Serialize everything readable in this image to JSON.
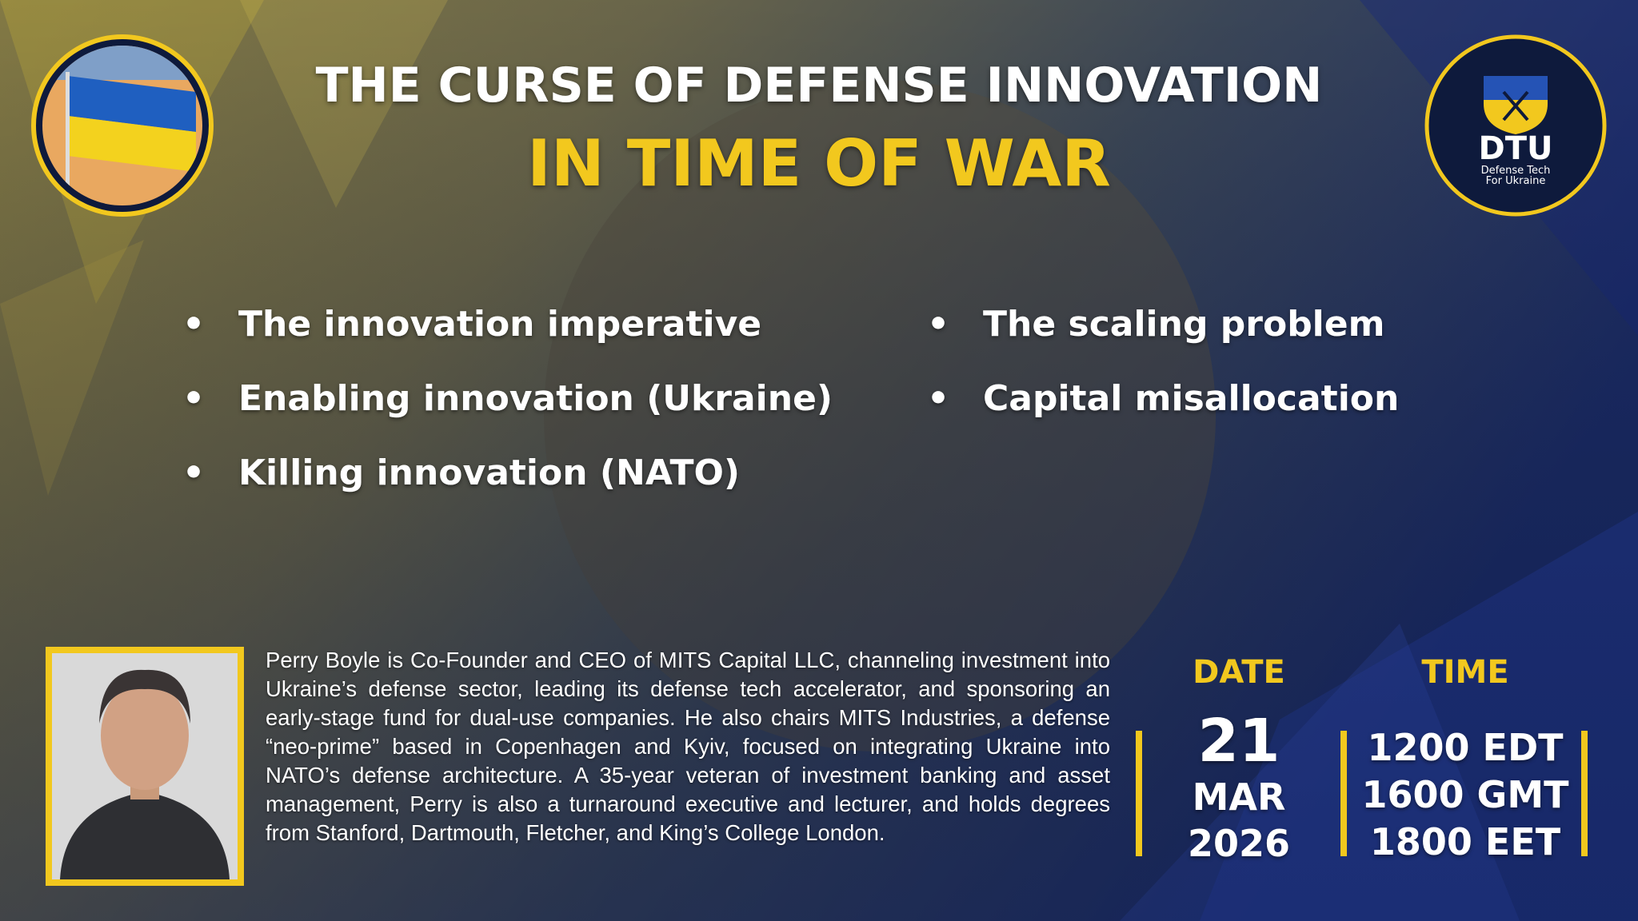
{
  "header": {
    "title": "THE CURSE OF DEFENSE INNOVATION",
    "subtitle": "IN TIME OF WAR"
  },
  "logo": {
    "name": "DTU",
    "tagline": [
      "Defense Tech",
      "For Ukraine"
    ]
  },
  "topics": {
    "left": [
      "The innovation imperative",
      "Enabling innovation (Ukraine)",
      "Killing innovation (NATO)"
    ],
    "right": [
      "The scaling problem",
      "Capital misallocation"
    ]
  },
  "speaker": {
    "bio": "Perry Boyle is Co-Founder and CEO of MITS Capital LLC, channeling investment into Ukraine’s defense sector, leading its defense tech accelerator, and sponsoring an early-stage fund for dual-use companies. He also chairs MITS Industries, a defense “neo-prime” based in Copenhagen and Kyiv, focused on integrating Ukraine into NATO’s defense architecture. A 35-year veteran of investment banking and asset management, Perry is also a turnaround executive and lecturer, and holds degrees from Stanford, Dartmouth, Fletcher, and King’s College London."
  },
  "event": {
    "date_label": "DATE",
    "day": "21",
    "month": "MAR",
    "year": "2026",
    "time_label": "TIME",
    "times": [
      "1200 EDT",
      "1600 GMT",
      "1800 EET"
    ]
  }
}
